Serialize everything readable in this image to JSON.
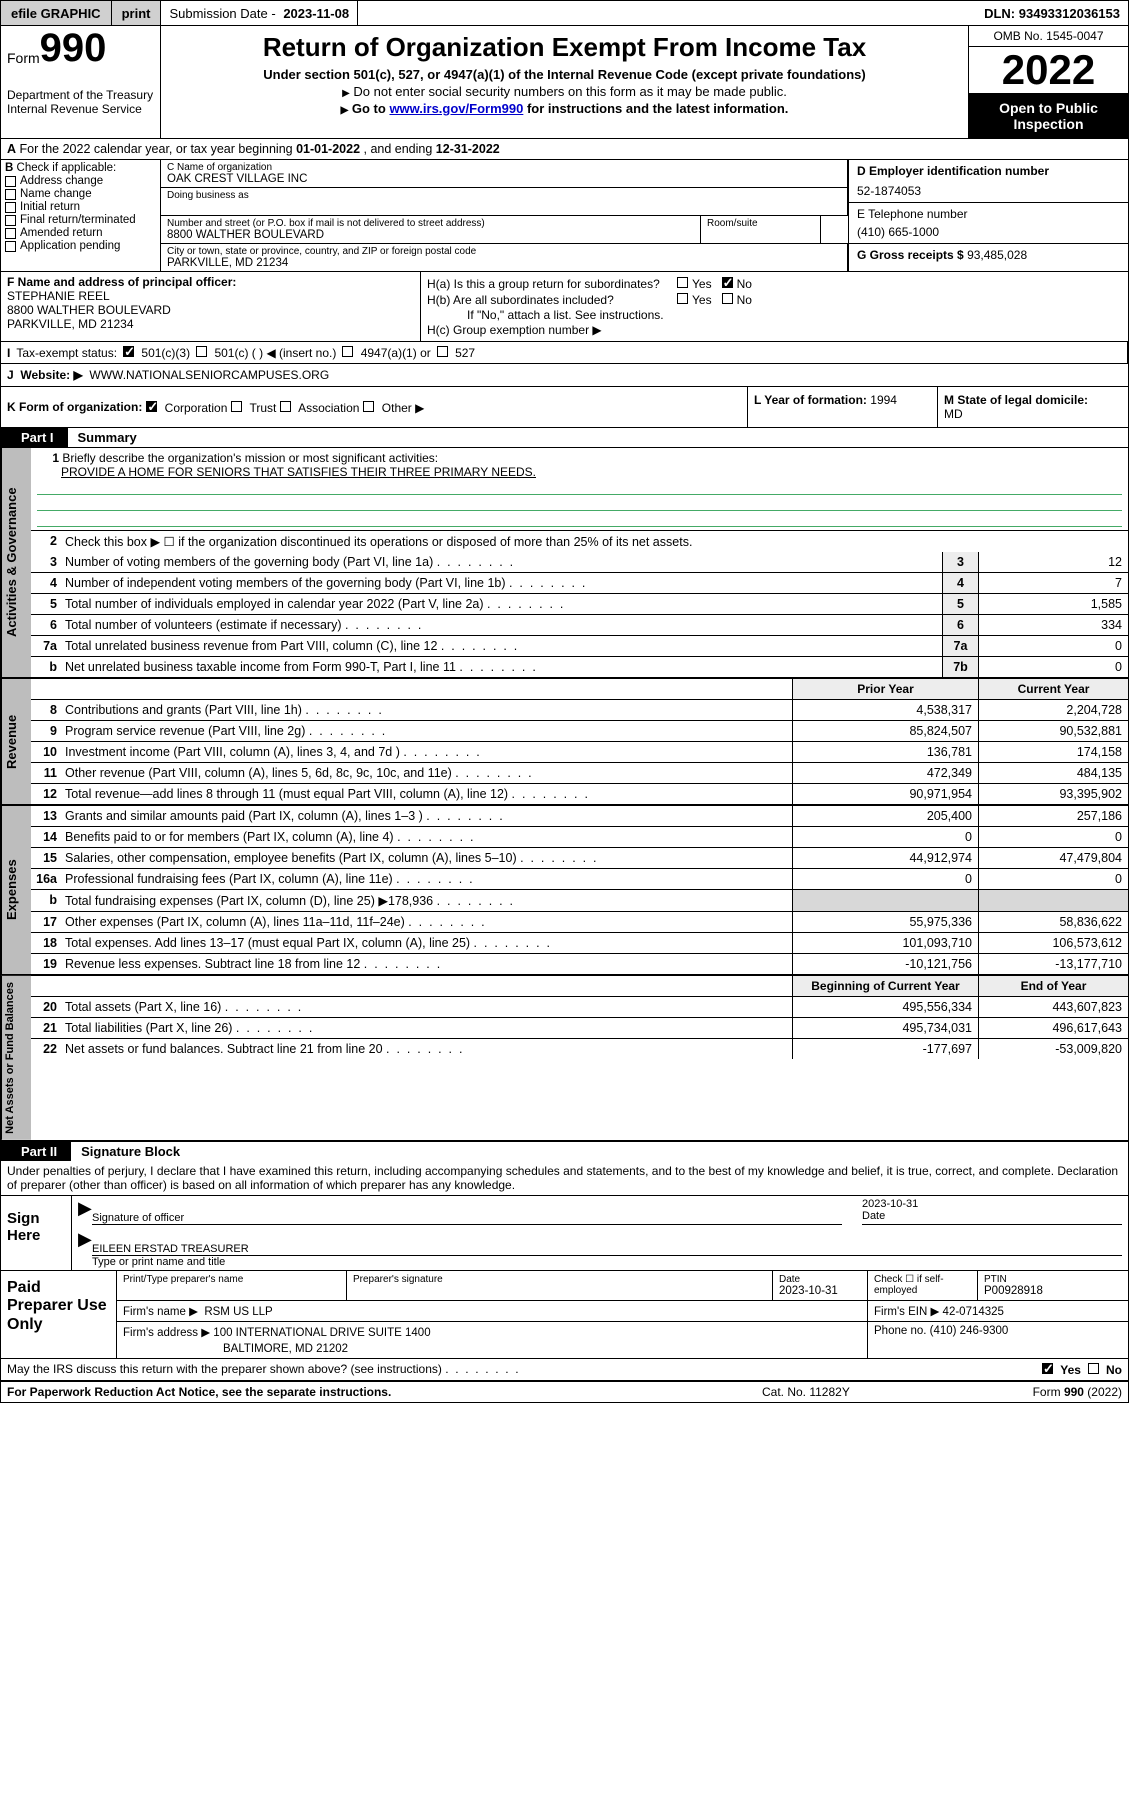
{
  "topbar": {
    "efile": "efile GRAPHIC",
    "print": "print",
    "sub_label": "Submission Date -",
    "sub_date": "2023-11-08",
    "dln_label": "DLN:",
    "dln": "93493312036153"
  },
  "header": {
    "form_word": "Form",
    "form_no": "990",
    "dept": "Department of the Treasury",
    "irs": "Internal Revenue Service",
    "title": "Return of Organization Exempt From Income Tax",
    "subtitle": "Under section 501(c), 527, or 4947(a)(1) of the Internal Revenue Code (except private foundations)",
    "note": "Do not enter social security numbers on this form as it may be made public.",
    "goto_pre": "Go to ",
    "goto_link": "www.irs.gov/Form990",
    "goto_post": " for instructions and the latest information.",
    "omb": "OMB No. 1545-0047",
    "year": "2022",
    "open": "Open to Public Inspection"
  },
  "lineA": {
    "pre": "For the 2022 calendar year, or tax year beginning ",
    "begin": "01-01-2022",
    "mid": " , and ending ",
    "end": "12-31-2022"
  },
  "B": {
    "label": "Check if applicable:",
    "opts": [
      "Address change",
      "Name change",
      "Initial return",
      "Final return/terminated",
      "Amended return",
      "Application pending"
    ]
  },
  "C": {
    "name_lbl": "C Name of organization",
    "name": "OAK CREST VILLAGE INC",
    "dba_lbl": "Doing business as",
    "addr_lbl": "Number and street (or P.O. box if mail is not delivered to street address)",
    "room_lbl": "Room/suite",
    "addr": "8800 WALTHER BOULEVARD",
    "city_lbl": "City or town, state or province, country, and ZIP or foreign postal code",
    "city": "PARKVILLE, MD  21234"
  },
  "D": {
    "lbl": "D Employer identification number",
    "val": "52-1874053"
  },
  "E": {
    "lbl": "E Telephone number",
    "val": "(410) 665-1000"
  },
  "G": {
    "lbl": "G Gross receipts $",
    "val": "93,485,028"
  },
  "F": {
    "lbl": "F  Name and address of principal officer:",
    "name": "STEPHANIE REEL",
    "addr1": "8800 WALTHER BOULEVARD",
    "addr2": "PARKVILLE, MD  21234"
  },
  "H": {
    "a_lbl": "H(a)  Is this a group return for subordinates?",
    "b_lbl": "H(b)  Are all subordinates included?",
    "b_note": "If \"No,\" attach a list. See instructions.",
    "c_lbl": "H(c)  Group exemption number ▶",
    "yes": "Yes",
    "no": "No"
  },
  "I": {
    "lbl": "Tax-exempt status:",
    "o1": "501(c)(3)",
    "o2": "501(c) (  ) ◀ (insert no.)",
    "o3": "4947(a)(1) or",
    "o4": "527"
  },
  "J": {
    "lbl": "Website: ▶",
    "val": "WWW.NATIONALSENIORCAMPUSES.ORG"
  },
  "K": {
    "lbl": "K Form of organization:",
    "o1": "Corporation",
    "o2": "Trust",
    "o3": "Association",
    "o4": "Other ▶"
  },
  "L": {
    "lbl": "L Year of formation:",
    "val": "1994"
  },
  "M": {
    "lbl": "M State of legal domicile:",
    "val": "MD"
  },
  "part1": {
    "tag": "Part I",
    "title": "Summary"
  },
  "sec1": {
    "tab": "Activities & Governance",
    "l1_lbl": "Briefly describe the organization's mission or most significant activities:",
    "l1_val": "PROVIDE A HOME FOR SENIORS THAT SATISFIES THEIR THREE PRIMARY NEEDS.",
    "l2": "Check this box ▶ ☐  if the organization discontinued its operations or disposed of more than 25% of its net assets.",
    "rows": [
      {
        "n": "3",
        "d": "Number of voting members of the governing body (Part VI, line 1a)",
        "box": "3",
        "v": "12"
      },
      {
        "n": "4",
        "d": "Number of independent voting members of the governing body (Part VI, line 1b)",
        "box": "4",
        "v": "7"
      },
      {
        "n": "5",
        "d": "Total number of individuals employed in calendar year 2022 (Part V, line 2a)",
        "box": "5",
        "v": "1,585"
      },
      {
        "n": "6",
        "d": "Total number of volunteers (estimate if necessary)",
        "box": "6",
        "v": "334"
      },
      {
        "n": "7a",
        "d": "Total unrelated business revenue from Part VIII, column (C), line 12",
        "box": "7a",
        "v": "0"
      },
      {
        "n": "b",
        "d": "Net unrelated business taxable income from Form 990-T, Part I, line 11",
        "box": "7b",
        "v": "0"
      }
    ]
  },
  "sec_rev": {
    "tab": "Revenue",
    "h1": "Prior Year",
    "h2": "Current Year",
    "rows": [
      {
        "n": "8",
        "d": "Contributions and grants (Part VIII, line 1h)",
        "p": "4,538,317",
        "c": "2,204,728"
      },
      {
        "n": "9",
        "d": "Program service revenue (Part VIII, line 2g)",
        "p": "85,824,507",
        "c": "90,532,881"
      },
      {
        "n": "10",
        "d": "Investment income (Part VIII, column (A), lines 3, 4, and 7d )",
        "p": "136,781",
        "c": "174,158"
      },
      {
        "n": "11",
        "d": "Other revenue (Part VIII, column (A), lines 5, 6d, 8c, 9c, 10c, and 11e)",
        "p": "472,349",
        "c": "484,135"
      },
      {
        "n": "12",
        "d": "Total revenue—add lines 8 through 11 (must equal Part VIII, column (A), line 12)",
        "p": "90,971,954",
        "c": "93,395,902"
      }
    ]
  },
  "sec_exp": {
    "tab": "Expenses",
    "rows": [
      {
        "n": "13",
        "d": "Grants and similar amounts paid (Part IX, column (A), lines 1–3 )",
        "p": "205,400",
        "c": "257,186"
      },
      {
        "n": "14",
        "d": "Benefits paid to or for members (Part IX, column (A), line 4)",
        "p": "0",
        "c": "0"
      },
      {
        "n": "15",
        "d": "Salaries, other compensation, employee benefits (Part IX, column (A), lines 5–10)",
        "p": "44,912,974",
        "c": "47,479,804"
      },
      {
        "n": "16a",
        "d": "Professional fundraising fees (Part IX, column (A), line 11e)",
        "p": "0",
        "c": "0"
      },
      {
        "n": "b",
        "d": "Total fundraising expenses (Part IX, column (D), line 25) ▶178,936",
        "p": "",
        "c": "",
        "shade": true
      },
      {
        "n": "17",
        "d": "Other expenses (Part IX, column (A), lines 11a–11d, 11f–24e)",
        "p": "55,975,336",
        "c": "58,836,622"
      },
      {
        "n": "18",
        "d": "Total expenses. Add lines 13–17 (must equal Part IX, column (A), line 25)",
        "p": "101,093,710",
        "c": "106,573,612"
      },
      {
        "n": "19",
        "d": "Revenue less expenses. Subtract line 18 from line 12",
        "p": "-10,121,756",
        "c": "-13,177,710"
      }
    ]
  },
  "sec_net": {
    "tab": "Net Assets or Fund Balances",
    "h1": "Beginning of Current Year",
    "h2": "End of Year",
    "rows": [
      {
        "n": "20",
        "d": "Total assets (Part X, line 16)",
        "p": "495,556,334",
        "c": "443,607,823"
      },
      {
        "n": "21",
        "d": "Total liabilities (Part X, line 26)",
        "p": "495,734,031",
        "c": "496,617,643"
      },
      {
        "n": "22",
        "d": "Net assets or fund balances. Subtract line 21 from line 20",
        "p": "-177,697",
        "c": "-53,009,820"
      }
    ]
  },
  "part2": {
    "tag": "Part II",
    "title": "Signature Block"
  },
  "sig": {
    "note": "Under penalties of perjury, I declare that I have examined this return, including accompanying schedules and statements, and to the best of my knowledge and belief, it is true, correct, and complete. Declaration of preparer (other than officer) is based on all information of which preparer has any knowledge.",
    "sign_here": "Sign Here",
    "sig_officer": "Signature of officer",
    "date_lbl": "Date",
    "date": "2023-10-31",
    "name": "EILEEN ERSTAD TREASURER",
    "name_lbl": "Type or print name and title"
  },
  "paid": {
    "left": "Paid Preparer Use Only",
    "h_name": "Print/Type preparer's name",
    "h_sig": "Preparer's signature",
    "h_date": "Date",
    "date": "2023-10-31",
    "h_check": "Check ☐ if self-employed",
    "h_ptin": "PTIN",
    "ptin": "P00928918",
    "firm_lbl": "Firm's name    ▶",
    "firm": "RSM US LLP",
    "ein_lbl": "Firm's EIN ▶",
    "ein": "42-0714325",
    "addr_lbl": "Firm's address ▶",
    "addr": "100 INTERNATIONAL DRIVE SUITE 1400",
    "addr2": "BALTIMORE, MD  21202",
    "phone_lbl": "Phone no.",
    "phone": "(410) 246-9300"
  },
  "footer": {
    "discuss": "May the IRS discuss this return with the preparer shown above? (see instructions)",
    "yes": "Yes",
    "no": "No",
    "paper": "For Paperwork Reduction Act Notice, see the separate instructions.",
    "cat": "Cat. No. 11282Y",
    "form": "Form 990 (2022)"
  }
}
